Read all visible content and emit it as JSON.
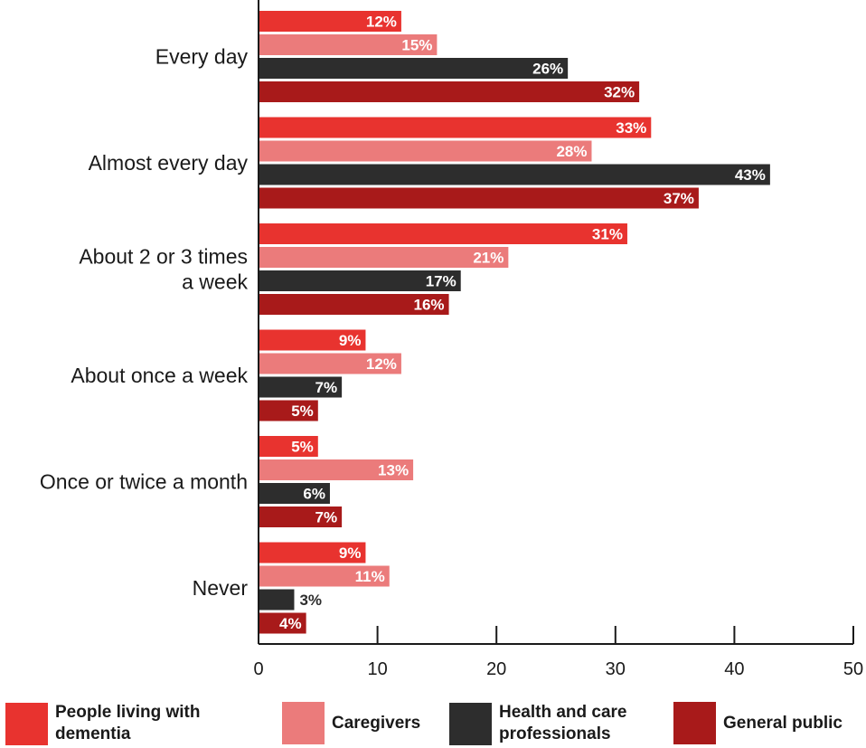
{
  "chart_data": {
    "type": "bar",
    "orientation": "horizontal",
    "categories": [
      "Every day",
      "Almost every day",
      "About 2 or 3 times\na week",
      "About once a week",
      "Once or twice a month",
      "Never"
    ],
    "series": [
      {
        "name": "People living with dementia",
        "color": "#e8332f",
        "values": [
          12,
          33,
          31,
          9,
          5,
          9
        ]
      },
      {
        "name": "Caregivers",
        "color": "#eb7b7b",
        "values": [
          15,
          28,
          21,
          12,
          13,
          11
        ]
      },
      {
        "name": "Health and care professionals",
        "color": "#2d2d2d",
        "values": [
          26,
          43,
          17,
          7,
          6,
          3
        ]
      },
      {
        "name": "General public",
        "color": "#a81a1a",
        "values": [
          32,
          37,
          16,
          5,
          7,
          4
        ]
      }
    ],
    "value_labels": [
      [
        "12%",
        "33%",
        "31%",
        "9%",
        "5%",
        "9%"
      ],
      [
        "15%",
        "28%",
        "21%",
        "12%",
        "13%",
        "11%"
      ],
      [
        "26%",
        "43%",
        "17%",
        "7%",
        "6%",
        "3%"
      ],
      [
        "32%",
        "37%",
        "16%",
        "5%",
        "7%",
        "4%"
      ]
    ],
    "xlim": [
      0,
      50
    ],
    "xticks": [
      "0",
      "10",
      "20",
      "30",
      "40",
      "50"
    ],
    "title": "",
    "xlabel": "",
    "ylabel": "",
    "grid": false,
    "legend_position": "bottom"
  },
  "legend": {
    "items": [
      {
        "label": "People living with dementia",
        "color": "#e8332f"
      },
      {
        "label": "Caregivers",
        "color": "#eb7b7b"
      },
      {
        "label": "Health and care professionals",
        "color": "#2d2d2d"
      },
      {
        "label": "General public",
        "color": "#a81a1a"
      }
    ]
  }
}
